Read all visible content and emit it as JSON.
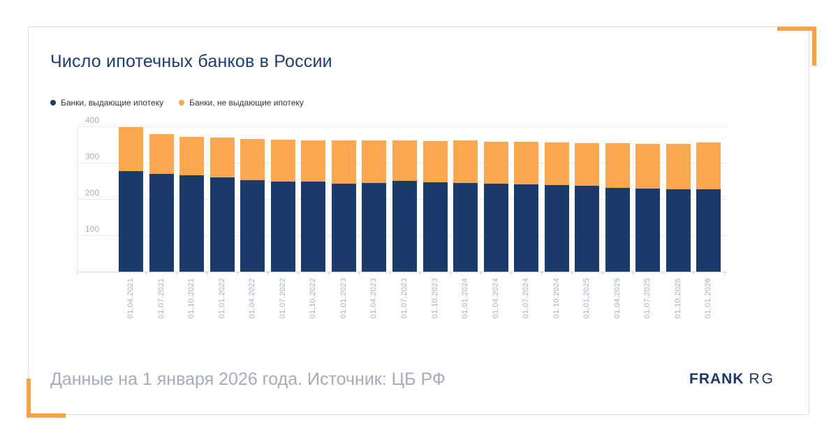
{
  "header": {
    "title": "Число ипотечных банков в России"
  },
  "legend": {
    "items": [
      {
        "label": "Банки, выдающие ипотеку",
        "color": "#1c3b6d"
      },
      {
        "label": "Банки, не выдающие ипотеку",
        "color": "#fca851"
      }
    ]
  },
  "chart_data": {
    "type": "bar",
    "stacked": true,
    "title": "Число ипотечных банков в России",
    "xlabel": "",
    "ylabel": "",
    "ylim": [
      0,
      400
    ],
    "yticks": [
      100,
      200,
      300,
      400
    ],
    "grid": true,
    "legend_position": "top-left",
    "x_label_rotation": -90,
    "categories": [
      "01.04.2021",
      "01.07.2021",
      "01.10.2021",
      "01.01.2022",
      "01.04.2022",
      "01.07.2022",
      "01.10.2022",
      "01.01.2023",
      "01.04.2023",
      "01.07.2023",
      "01.10.2023",
      "01.01.2024",
      "01.04.2024",
      "01.07.2024",
      "01.10.2024",
      "01.01.2025",
      "01.04.2025",
      "01.07.2025",
      "01.10.2025",
      "01.01.2026"
    ],
    "series": [
      {
        "name": "Банки, выдающие ипотеку",
        "color": "#1c3b6d",
        "values": [
          277,
          270,
          265,
          260,
          251,
          248,
          248,
          243,
          245,
          250,
          247,
          245,
          243,
          241,
          239,
          236,
          230,
          229,
          227,
          226
        ]
      },
      {
        "name": "Банки, не выдающие ипотеку",
        "color": "#fca851",
        "values": [
          121,
          108,
          107,
          110,
          114,
          115,
          114,
          118,
          116,
          111,
          113,
          116,
          114,
          116,
          116,
          117,
          123,
          123,
          125,
          129
        ]
      }
    ]
  },
  "footer": {
    "note": "Данные на 1 января 2026 года. Источник: ЦБ РФ",
    "logo_primary": "FRANK",
    "logo_secondary": "RG"
  },
  "accent": {
    "bracket_color": "#f8a145"
  }
}
